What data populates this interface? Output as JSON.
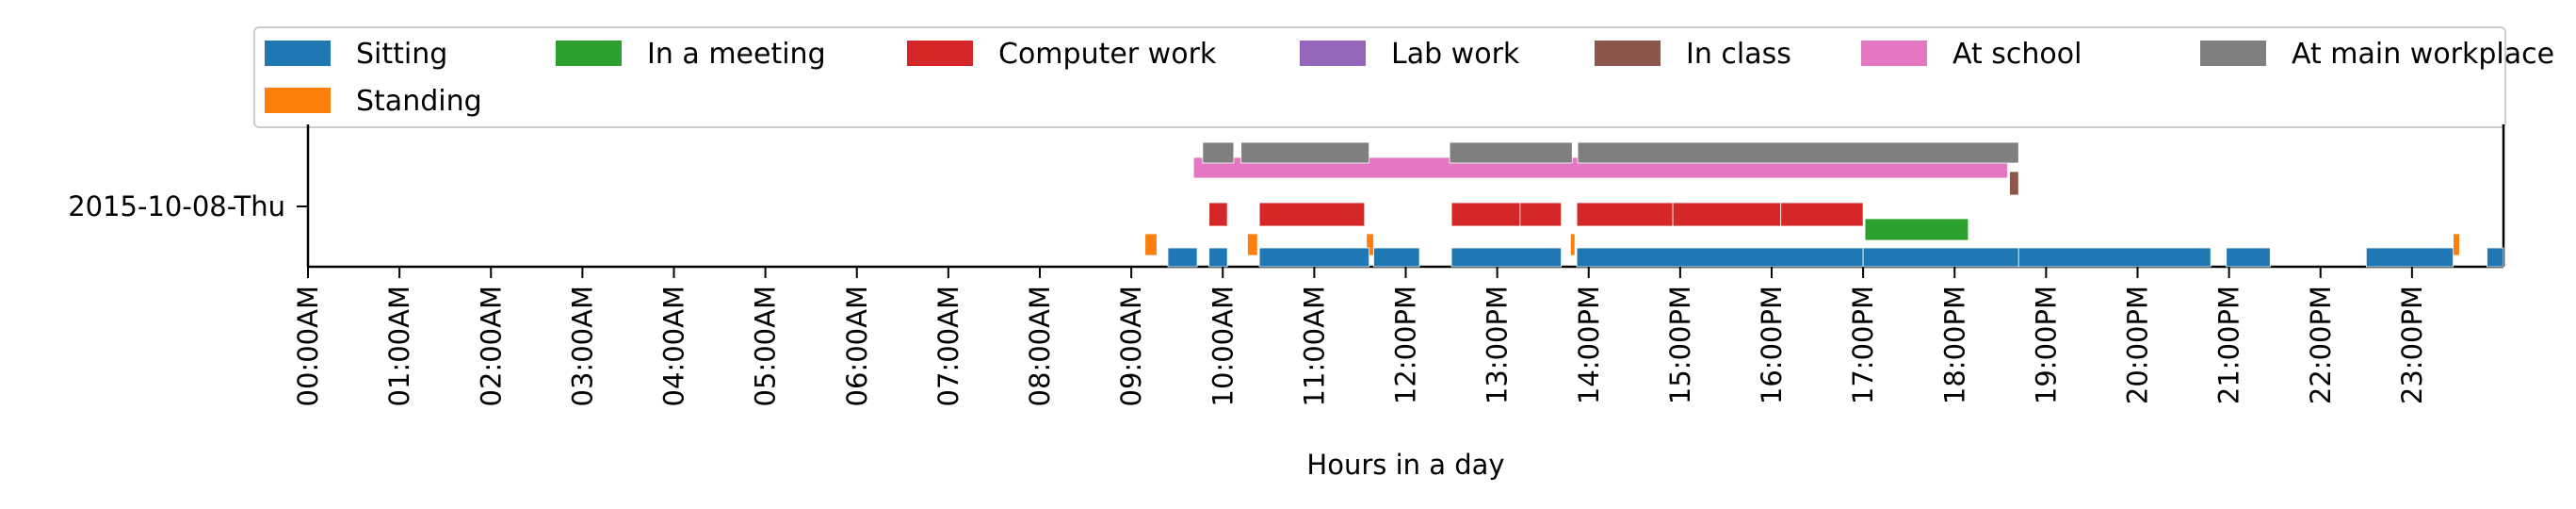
{
  "chart_data": {
    "type": "timeline",
    "xlabel": "Hours in a day",
    "xlim": [
      0,
      24
    ],
    "y_category": "2015-10-08-Thu",
    "x_ticks": [
      "00:00AM",
      "01:00AM",
      "02:00AM",
      "03:00AM",
      "04:00AM",
      "05:00AM",
      "06:00AM",
      "07:00AM",
      "08:00AM",
      "09:00AM",
      "10:00AM",
      "11:00AM",
      "12:00PM",
      "13:00PM",
      "14:00PM",
      "15:00PM",
      "16:00PM",
      "17:00PM",
      "18:00PM",
      "19:00PM",
      "20:00PM",
      "21:00PM",
      "22:00PM",
      "23:00PM"
    ],
    "legend_position": "top",
    "series": [
      {
        "name": "Sitting",
        "color": "#1f77b4",
        "segments": [
          [
            9.4,
            9.72
          ],
          [
            9.85,
            10.05
          ],
          [
            10.4,
            11.6
          ],
          [
            11.65,
            12.15
          ],
          [
            12.5,
            13.7
          ],
          [
            13.87,
            17.0
          ],
          [
            17.0,
            18.7
          ],
          [
            18.7,
            20.8
          ],
          [
            20.97,
            21.45
          ],
          [
            22.5,
            23.45
          ],
          [
            23.82,
            24.0
          ]
        ]
      },
      {
        "name": "Standing",
        "color": "#ff7f0e",
        "segments": [
          [
            9.15,
            9.28
          ],
          [
            10.27,
            10.38
          ],
          [
            11.57,
            11.65
          ],
          [
            13.8,
            13.85
          ],
          [
            23.45,
            23.52
          ]
        ]
      },
      {
        "name": "In a meeting",
        "color": "#2ca02c",
        "segments": [
          [
            17.02,
            18.15
          ]
        ]
      },
      {
        "name": "Computer work",
        "color": "#d62728",
        "segments": [
          [
            9.85,
            10.05
          ],
          [
            10.4,
            11.55
          ],
          [
            12.5,
            13.25
          ],
          [
            13.25,
            13.7
          ],
          [
            13.87,
            14.92
          ],
          [
            14.92,
            16.1
          ],
          [
            16.1,
            17.0
          ]
        ]
      },
      {
        "name": "Lab work",
        "color": "#9467bd",
        "segments": []
      },
      {
        "name": "In class",
        "color": "#8c564b",
        "segments": [
          [
            18.6,
            18.7
          ]
        ]
      },
      {
        "name": "At school",
        "color": "#e377c2",
        "segments": [
          [
            9.68,
            18.58
          ]
        ]
      },
      {
        "name": "At main workplace",
        "color": "#7f7f7f",
        "segments": [
          [
            9.78,
            10.12
          ],
          [
            10.2,
            11.6
          ],
          [
            12.48,
            13.82
          ],
          [
            13.88,
            18.7
          ]
        ]
      }
    ]
  }
}
